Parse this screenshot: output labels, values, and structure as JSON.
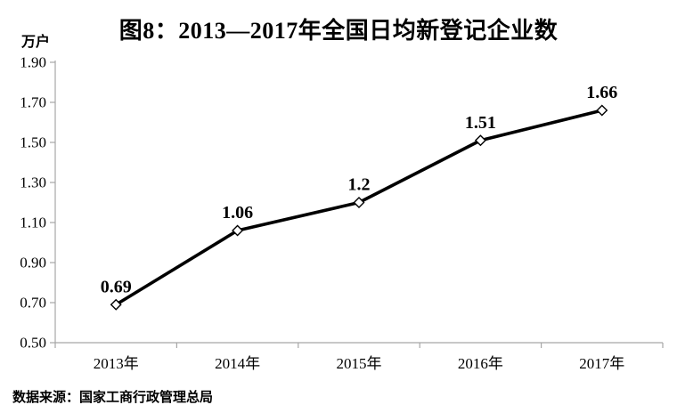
{
  "title": "图8：2013—2017年全国日均新登记企业数",
  "unit_label": "万户",
  "source": "数据来源：国家工商行政管理总局",
  "colors": {
    "background": "#ffffff",
    "title_text": "#000000",
    "axis_line": "#a6a6a6",
    "tick_text": "#000000",
    "series_line": "#000000",
    "marker_fill": "#ffffff",
    "marker_stroke": "#000000",
    "data_label": "#000000"
  },
  "chart_data": {
    "type": "line",
    "title": "图8：2013—2017年全国日均新登记企业数",
    "ylabel": "万户",
    "xlabel": "",
    "categories": [
      "2013年",
      "2014年",
      "2015年",
      "2016年",
      "2017年"
    ],
    "values": [
      0.69,
      1.06,
      1.2,
      1.51,
      1.66
    ],
    "point_labels": [
      "0.69",
      "1.06",
      "1.2",
      "1.51",
      "1.66"
    ],
    "ylim": [
      0.5,
      1.9
    ],
    "ytick_step": 0.2,
    "ytick_labels": [
      "1.90",
      "1.70",
      "1.50",
      "1.30",
      "1.10",
      "0.90",
      "0.70",
      "0.50"
    ],
    "grid": false,
    "legend": "none",
    "marker": "open-diamond",
    "source": "数据来源：国家工商行政管理总局"
  }
}
